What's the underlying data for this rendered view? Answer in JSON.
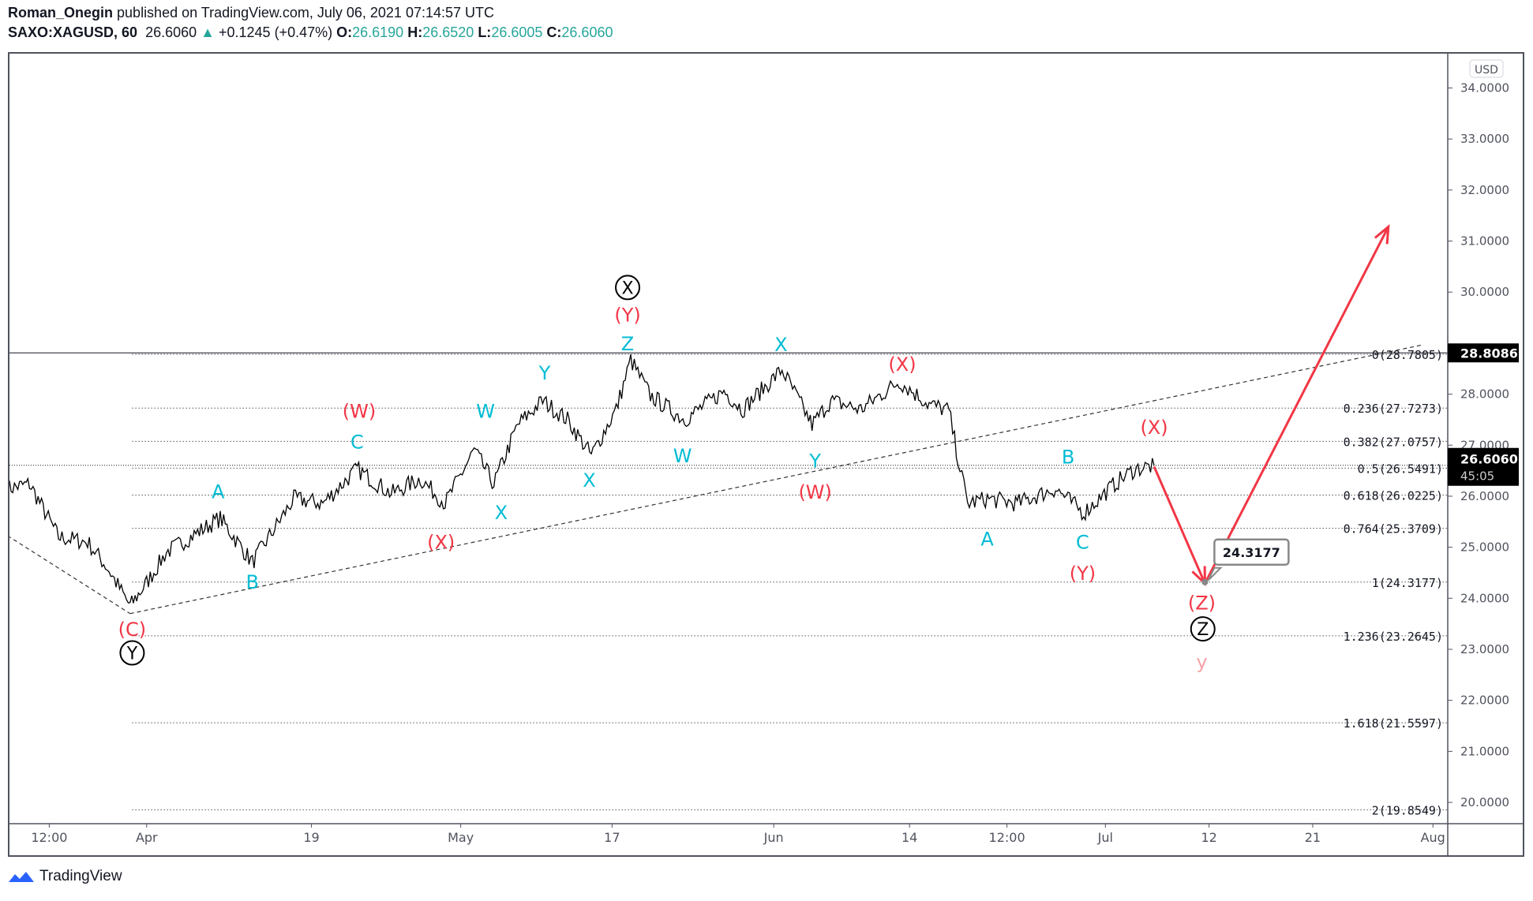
{
  "header": {
    "author": "Roman_Onegin",
    "published": "published on TradingView.com, July 06, 2021 07:14:57 UTC",
    "symbol": "SAXO:XAGUSD, 60",
    "last": "26.6060",
    "change": "+0.1245 (+0.47%)",
    "o_label": "O:",
    "o": "26.6190",
    "h_label": "H:",
    "h": "26.6520",
    "l_label": "L:",
    "l": "26.6005",
    "c_label": "C:",
    "c": "26.6060"
  },
  "footer": {
    "brand": "TradingView"
  },
  "colors": {
    "cyan": "#00bcd4",
    "red": "#f23645",
    "pink": "#f7a1a8",
    "up": "#26a69a"
  },
  "chart_data": {
    "type": "line",
    "title": "SAXO:XAGUSD, 60",
    "currency": "USD",
    "ylim": [
      19.4,
      34.4
    ],
    "y_ticks": [
      "34.0000",
      "33.0000",
      "32.0000",
      "31.0000",
      "30.0000",
      "28.0000",
      "27.0000",
      "26.0000",
      "25.0000",
      "24.0000",
      "23.0000",
      "22.0000",
      "21.0000",
      "20.0000"
    ],
    "x_ticks": [
      {
        "label": "12:00",
        "day": -9.4
      },
      {
        "label": "Apr",
        "day": 0
      },
      {
        "label": "19",
        "day": 15.9
      },
      {
        "label": "May",
        "day": 30.3
      },
      {
        "label": "17",
        "day": 44.9
      },
      {
        "label": "Jun",
        "day": 60.5
      },
      {
        "label": "14",
        "day": 73.6
      },
      {
        "label": "12:00",
        "day": 83
      },
      {
        "label": "Jul",
        "day": 92.5
      },
      {
        "label": "12",
        "day": 102.5
      },
      {
        "label": "21",
        "day": 112.5
      },
      {
        "label": "Aug",
        "day": 124.1
      }
    ],
    "price_path": [
      [
        -13.4,
        26.15
      ],
      [
        -11.3,
        26.24
      ],
      [
        -8.5,
        25.2
      ],
      [
        -5.7,
        25.1
      ],
      [
        -3.8,
        24.6
      ],
      [
        -1.6,
        23.85
      ],
      [
        0,
        24.3
      ],
      [
        1.9,
        24.9
      ],
      [
        7.1,
        25.57
      ],
      [
        10.2,
        24.7
      ],
      [
        14.2,
        25.95
      ],
      [
        17,
        25.86
      ],
      [
        20.3,
        26.53
      ],
      [
        23.6,
        26.05
      ],
      [
        26.4,
        26.34
      ],
      [
        28.8,
        25.86
      ],
      [
        31.6,
        26.9
      ],
      [
        33.5,
        26.24
      ],
      [
        35.8,
        27.4
      ],
      [
        38.2,
        27.87
      ],
      [
        40.6,
        27.5
      ],
      [
        42.9,
        26.8
      ],
      [
        45.3,
        27.7
      ],
      [
        46.7,
        28.67
      ],
      [
        48.6,
        27.97
      ],
      [
        51.9,
        27.5
      ],
      [
        55.7,
        28.06
      ],
      [
        57.5,
        27.7
      ],
      [
        61.3,
        28.48
      ],
      [
        64.2,
        27.4
      ],
      [
        66,
        27.87
      ],
      [
        68.9,
        27.7
      ],
      [
        72.6,
        28.25
      ],
      [
        75.5,
        27.8
      ],
      [
        77.4,
        27.68
      ],
      [
        78.3,
        26.72
      ],
      [
        79.2,
        25.86
      ],
      [
        81.1,
        25.95
      ],
      [
        84,
        25.86
      ],
      [
        87.7,
        26.15
      ],
      [
        90.4,
        25.67
      ],
      [
        93.4,
        26.24
      ],
      [
        95.3,
        26.53
      ],
      [
        97.2,
        26.6
      ]
    ],
    "last_price": {
      "value": "26.6060",
      "countdown": "45:05"
    },
    "horizontal_line": {
      "value": "28.8086"
    },
    "fib_levels": [
      {
        "ratio": "0",
        "price": 28.7805,
        "label": "0(28.7805)"
      },
      {
        "ratio": "0.236",
        "price": 27.7273,
        "label": "0.236(27.7273)"
      },
      {
        "ratio": "0.382",
        "price": 27.0757,
        "label": "0.382(27.0757)"
      },
      {
        "ratio": "0.5",
        "price": 26.5491,
        "label": "0.5(26.5491)"
      },
      {
        "ratio": "0.618",
        "price": 26.0225,
        "label": "0.618(26.0225)"
      },
      {
        "ratio": "0.764",
        "price": 25.3709,
        "label": "0.764(25.3709)"
      },
      {
        "ratio": "1",
        "price": 24.3177,
        "label": "1(24.3177)"
      },
      {
        "ratio": "1.236",
        "price": 23.2645,
        "label": "1.236(23.2645)"
      },
      {
        "ratio": "1.618",
        "price": 21.5597,
        "label": "1.618(21.5597)"
      },
      {
        "ratio": "2",
        "price": 19.8549,
        "label": "2(19.8549)"
      }
    ],
    "trendlines": [
      {
        "from": [
          -14,
          25.3
        ],
        "to": [
          -1.6,
          23.7
        ]
      },
      {
        "from": [
          -1.6,
          23.7
        ],
        "to": [
          123.2,
          28.97
        ]
      }
    ],
    "arrows": [
      {
        "from": [
          97.2,
          26.58
        ],
        "to": [
          102.1,
          24.29
        ]
      },
      {
        "from": [
          102.1,
          24.29
        ],
        "to": [
          119.8,
          31.28
        ]
      }
    ],
    "callout": {
      "text": "24.3177",
      "day": 102.1,
      "price": 24.3177
    },
    "wave_labels": [
      {
        "text": ")",
        "color": "red",
        "day": -13.6,
        "price": 27.14
      },
      {
        "text": "(C)",
        "color": "red",
        "day": -1.4,
        "price": 23.4
      },
      {
        "text": "Y",
        "color": "circle",
        "day": -1.4,
        "price": 22.93
      },
      {
        "text": "A",
        "color": "cyan",
        "day": 6.9,
        "price": 26.1
      },
      {
        "text": "B",
        "color": "cyan",
        "day": 10.2,
        "price": 24.33
      },
      {
        "text": "C",
        "color": "cyan",
        "day": 20.3,
        "price": 27.07
      },
      {
        "text": "(W)",
        "color": "red",
        "day": 20.5,
        "price": 27.68
      },
      {
        "text": "(X)",
        "color": "red",
        "day": 28.4,
        "price": 25.11
      },
      {
        "text": "X",
        "color": "cyan",
        "day": 34.2,
        "price": 25.69
      },
      {
        "text": "W",
        "color": "cyan",
        "day": 32.7,
        "price": 27.68
      },
      {
        "text": "Y",
        "color": "cyan",
        "day": 38.4,
        "price": 28.43
      },
      {
        "text": "X",
        "color": "cyan",
        "day": 42.7,
        "price": 26.32
      },
      {
        "text": "Z",
        "color": "cyan",
        "day": 46.4,
        "price": 29.0
      },
      {
        "text": "(Y)",
        "color": "red",
        "day": 46.4,
        "price": 29.56
      },
      {
        "text": "X",
        "color": "circle",
        "day": 46.4,
        "price": 30.09
      },
      {
        "text": "W",
        "color": "cyan",
        "day": 51.7,
        "price": 26.8
      },
      {
        "text": "X",
        "color": "cyan",
        "day": 61.2,
        "price": 28.98
      },
      {
        "text": "Y",
        "color": "cyan",
        "day": 64.5,
        "price": 26.7
      },
      {
        "text": "(W)",
        "color": "red",
        "day": 64.5,
        "price": 26.09
      },
      {
        "text": "(X)",
        "color": "red",
        "day": 72.9,
        "price": 28.6
      },
      {
        "text": "A",
        "color": "cyan",
        "day": 81.1,
        "price": 25.17
      },
      {
        "text": "B",
        "color": "cyan",
        "day": 88.9,
        "price": 26.78
      },
      {
        "text": "C",
        "color": "cyan",
        "day": 90.3,
        "price": 25.11
      },
      {
        "text": "(Y)",
        "color": "red",
        "day": 90.3,
        "price": 24.5
      },
      {
        "text": "(X)",
        "color": "red",
        "day": 97.2,
        "price": 27.36
      },
      {
        "text": "(Z)",
        "color": "red",
        "day": 101.8,
        "price": 23.92
      },
      {
        "text": "Z",
        "color": "circle",
        "day": 101.9,
        "price": 23.4
      },
      {
        "text": "y",
        "color": "pink",
        "day": 101.8,
        "price": 22.77
      }
    ]
  }
}
